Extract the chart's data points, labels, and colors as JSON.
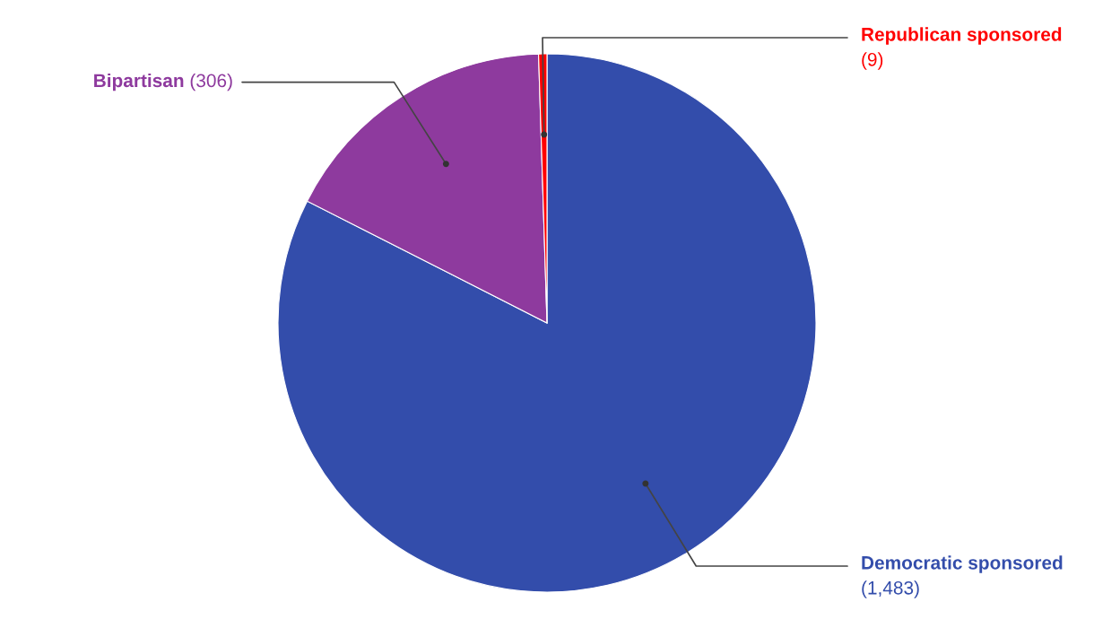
{
  "chart_data": {
    "type": "pie",
    "categories": [
      "Democratic sponsored",
      "Bipartisan",
      "Republican sponsored"
    ],
    "values": [
      1483,
      306,
      9
    ],
    "colors": [
      "#334dab",
      "#8e3a9e",
      "#ff0000"
    ],
    "value_labels": [
      "(1,483)",
      "(306)",
      "(9)"
    ]
  }
}
